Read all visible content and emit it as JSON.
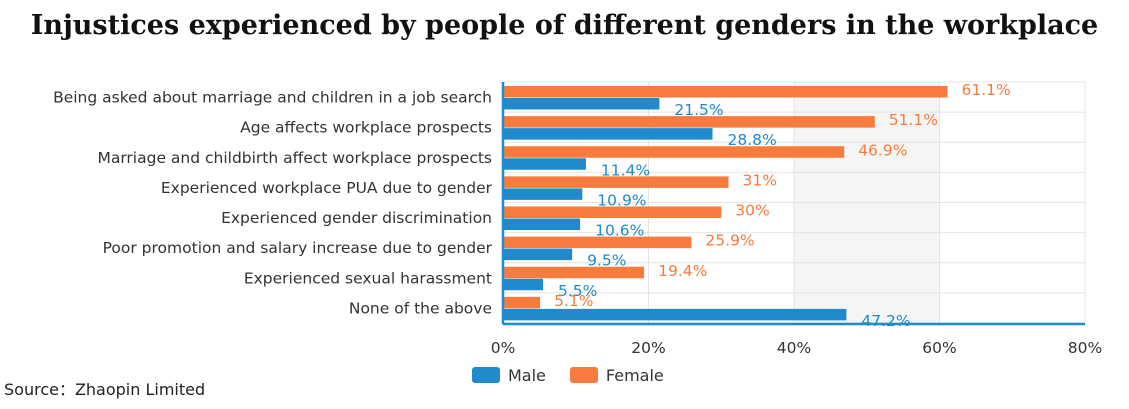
{
  "colors": {
    "male": "#1f8bcc",
    "female": "#f77b3c",
    "grid": "#e4e4e4",
    "band": "#f5f5f5",
    "axis": "#1f8bcc"
  },
  "chart_data": {
    "type": "bar",
    "orientation": "horizontal",
    "title": "Injustices experienced by people of different genders in the workplace",
    "categories": [
      "Being asked about marriage and children in a job search",
      "Age affects workplace prospects",
      "Marriage and childbirth affect workplace prospects",
      "Experienced workplace PUA due to gender",
      "Experienced gender discrimination",
      "Poor promotion and salary increase due to gender",
      "Experienced sexual harassment",
      "None of the above"
    ],
    "series": [
      {
        "name": "Female",
        "values": [
          61.1,
          51.1,
          46.9,
          31,
          30,
          25.9,
          19.4,
          5.1
        ],
        "labels": [
          "61.1%",
          "51.1%",
          "46.9%",
          "31%",
          "30%",
          "25.9%",
          "19.4%",
          "5.1%"
        ]
      },
      {
        "name": "Male",
        "values": [
          21.5,
          28.8,
          11.4,
          10.9,
          10.6,
          9.5,
          5.5,
          47.2
        ],
        "labels": [
          "21.5%",
          "28.8%",
          "11.4%",
          "10.9%",
          "10.6%",
          "9.5%",
          "5.5%",
          "47.2%"
        ]
      }
    ],
    "xlim": [
      0,
      80
    ],
    "xticks": [
      0,
      20,
      40,
      60,
      80
    ],
    "xtick_labels": [
      "0%",
      "20%",
      "40%",
      "60%",
      "80%"
    ],
    "grid": true,
    "legend": {
      "position": "bottom-center",
      "entries": [
        "Male",
        "Female"
      ]
    }
  },
  "source": "Source：Zhaopin Limited"
}
